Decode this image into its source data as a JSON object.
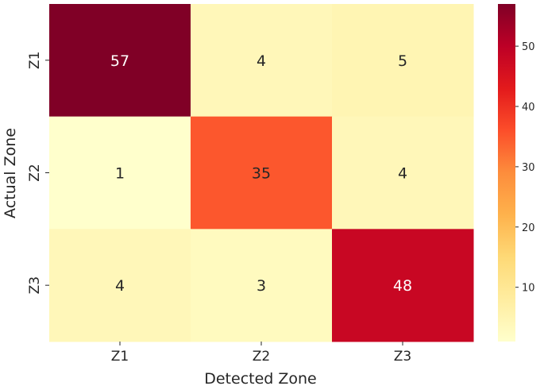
{
  "chart_data": {
    "type": "heatmap",
    "xlabel": "Detected Zone",
    "ylabel": "Actual Zone",
    "x_categories": [
      "Z1",
      "Z2",
      "Z3"
    ],
    "y_categories": [
      "Z1",
      "Z2",
      "Z3"
    ],
    "values": [
      [
        57,
        4,
        5
      ],
      [
        1,
        35,
        4
      ],
      [
        4,
        3,
        48
      ]
    ],
    "colorbar": {
      "min": 1,
      "max": 57,
      "ticks": [
        10,
        20,
        30,
        40,
        50
      ]
    },
    "colormap": "YlOrRd",
    "annotations": true
  }
}
